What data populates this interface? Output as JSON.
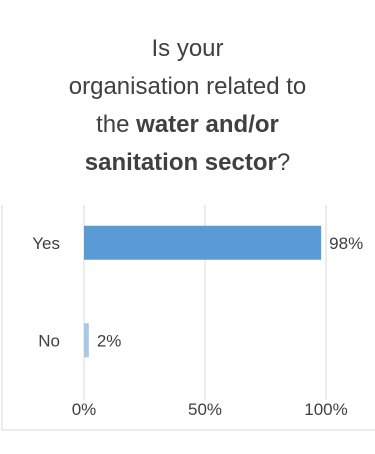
{
  "chart_data": {
    "type": "bar",
    "orientation": "horizontal",
    "title_lines": [
      [
        {
          "text": "Is your",
          "bold": false
        }
      ],
      [
        {
          "text": "organisation related to",
          "bold": false
        }
      ],
      [
        {
          "text": "the ",
          "bold": false
        },
        {
          "text": "water and/or",
          "bold": true
        }
      ],
      [
        {
          "text": "sanitation sector",
          "bold": true
        },
        {
          "text": "?",
          "bold": false
        }
      ]
    ],
    "categories": [
      "Yes",
      "No"
    ],
    "values": [
      98,
      2
    ],
    "value_labels": [
      "98%",
      "2%"
    ],
    "xlim": [
      0,
      100
    ],
    "x_ticks": [
      0,
      50,
      100
    ],
    "x_tick_labels": [
      "0%",
      "50%",
      "100%"
    ],
    "grid": true,
    "bar_colors": [
      "#5B9BD5",
      "#A9C8E8"
    ]
  }
}
